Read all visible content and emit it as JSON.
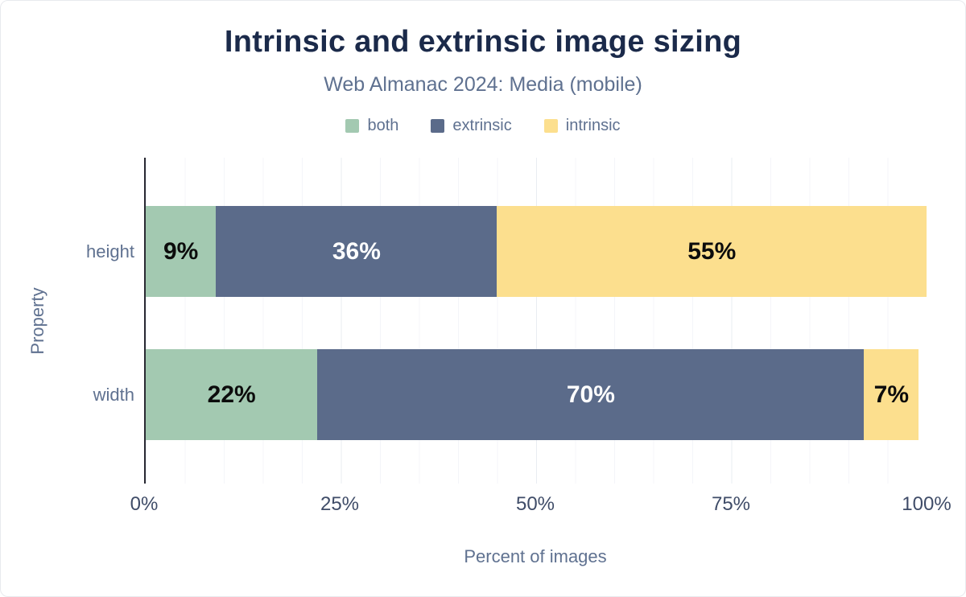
{
  "chart_data": {
    "type": "bar",
    "variant": "horizontal-stacked",
    "title": "Intrinsic and extrinsic image sizing",
    "subtitle": "Web Almanac 2024: Media (mobile)",
    "categories": [
      "height",
      "width"
    ],
    "series": [
      {
        "name": "both",
        "color": "#a3c9b1",
        "label_color": "#0c0c0c",
        "values": [
          9,
          22
        ]
      },
      {
        "name": "extrinsic",
        "color": "#5b6b8a",
        "label_color": "#ffffff",
        "values": [
          36,
          70
        ]
      },
      {
        "name": "intrinsic",
        "color": "#fcdf8e",
        "label_color": "#0c0c0c",
        "values": [
          55,
          7
        ]
      }
    ],
    "value_suffix": "%",
    "xlabel": "Percent of images",
    "ylabel": "Property",
    "x_ticks": [
      "0%",
      "25%",
      "50%",
      "75%",
      "100%"
    ],
    "xlim": [
      0,
      100
    ],
    "grid": "faint vertical minor lines every 5%, major every 25%",
    "legend_position": "top",
    "colors": {
      "title": "#1b2a4a",
      "muted_text": "#5f7190",
      "tick_text": "#3f4c68",
      "axis_line": "#2a2a33"
    }
  }
}
